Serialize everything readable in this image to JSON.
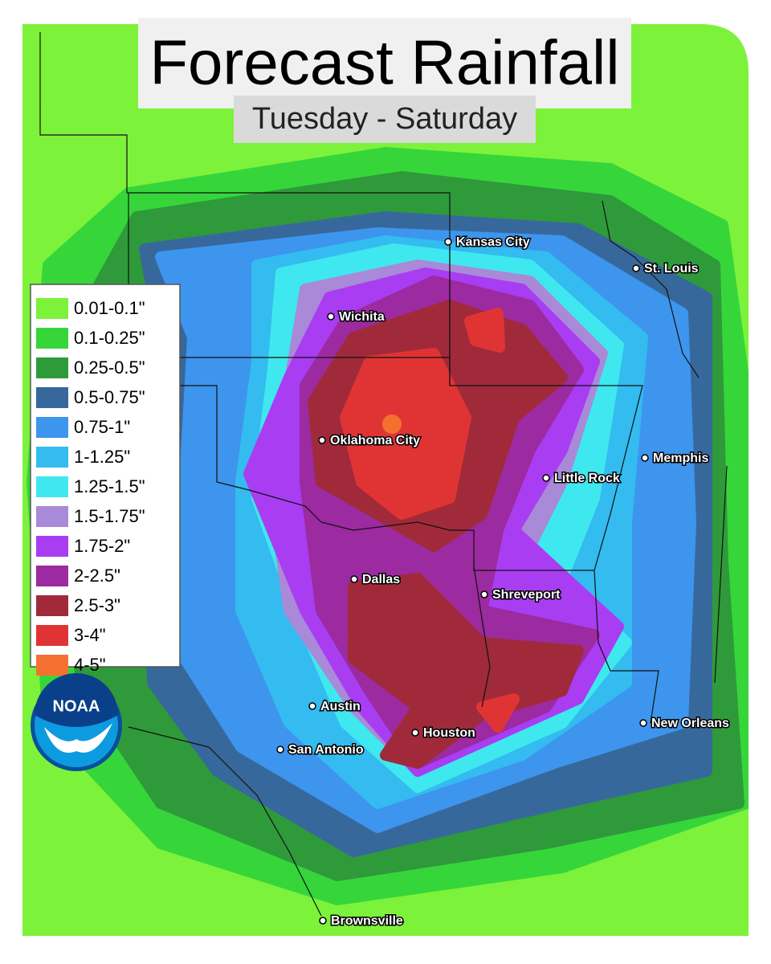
{
  "title": "Forecast Rainfall",
  "subtitle": "Tuesday - Saturday",
  "legend": [
    {
      "label": "0.01-0.1\"",
      "color": "#7df23b"
    },
    {
      "label": "0.1-0.25\"",
      "color": "#36d63b"
    },
    {
      "label": "0.25-0.5\"",
      "color": "#2f9a3a"
    },
    {
      "label": "0.5-0.75\"",
      "color": "#37689c"
    },
    {
      "label": "0.75-1\"",
      "color": "#3d95ee"
    },
    {
      "label": "1-1.25\"",
      "color": "#34bbf0"
    },
    {
      "label": "1.25-1.5\"",
      "color": "#3fe8ee"
    },
    {
      "label": "1.5-1.75\"",
      "color": "#a88ad8"
    },
    {
      "label": "1.75-2\"",
      "color": "#a93df2"
    },
    {
      "label": "2-2.5\"",
      "color": "#9c2aa0"
    },
    {
      "label": "2.5-3\"",
      "color": "#a02a3a"
    },
    {
      "label": "3-4\"",
      "color": "#e03434"
    },
    {
      "label": "4-5\"",
      "color": "#f47030"
    }
  ],
  "logo": "NOAA",
  "cities": [
    "Kansas City",
    "St. Louis",
    "Wichita",
    "Oklahoma City",
    "Memphis",
    "Little Rock",
    "Dallas",
    "Shreveport",
    "Austin",
    "Houston",
    "New Orleans",
    "San Antonio",
    "Brownsville"
  ]
}
